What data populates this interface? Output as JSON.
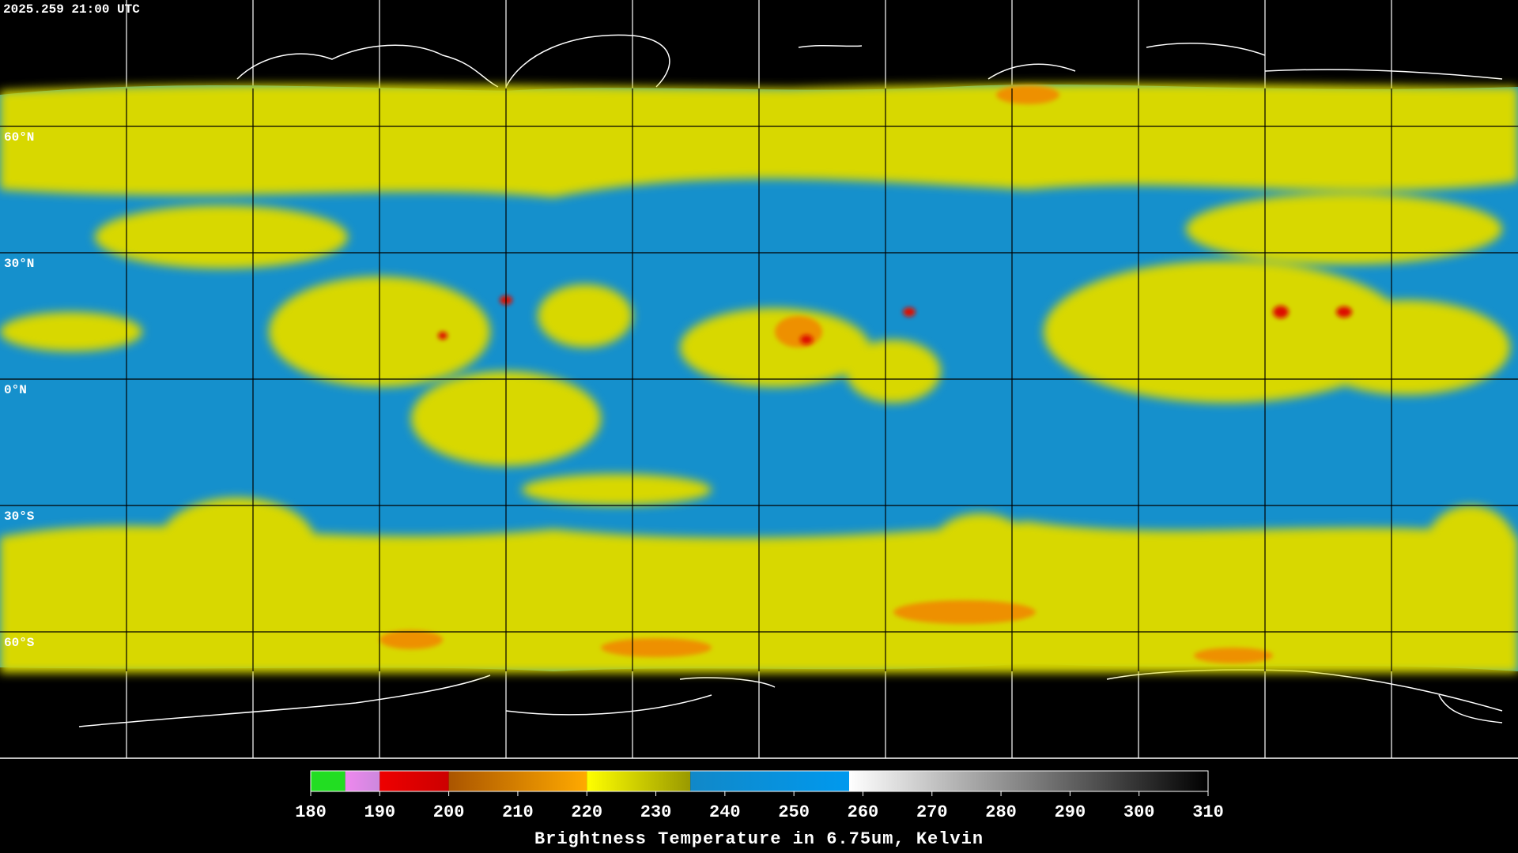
{
  "header": {
    "timestamp": "2025.259 21:00 UTC"
  },
  "map": {
    "lat_labels": [
      "60°N",
      "30°N",
      "0°N",
      "30°S",
      "60°S"
    ]
  },
  "colorbar": {
    "range": [
      180,
      310
    ],
    "ticks": [
      180,
      190,
      200,
      210,
      220,
      230,
      240,
      250,
      260,
      270,
      280,
      290,
      300,
      310
    ],
    "segments": [
      {
        "from": 180,
        "to": 185,
        "start": "#22dd22",
        "end": "#22dd22"
      },
      {
        "from": 185,
        "to": 190,
        "start": "#ee88ee",
        "end": "#cc88dd"
      },
      {
        "from": 190,
        "to": 200,
        "start": "#ee0000",
        "end": "#cc0000"
      },
      {
        "from": 200,
        "to": 220,
        "start": "#aa5500",
        "end": "#ffaa00"
      },
      {
        "from": 220,
        "to": 235,
        "start": "#ffff00",
        "end": "#999900"
      },
      {
        "from": 235,
        "to": 258,
        "start": "#1188c8",
        "end": "#0099ee"
      },
      {
        "from": 258,
        "to": 310,
        "start": "#ffffff",
        "end": "#000000"
      }
    ],
    "label": "Brightness Temperature in 6.75um, Kelvin"
  }
}
